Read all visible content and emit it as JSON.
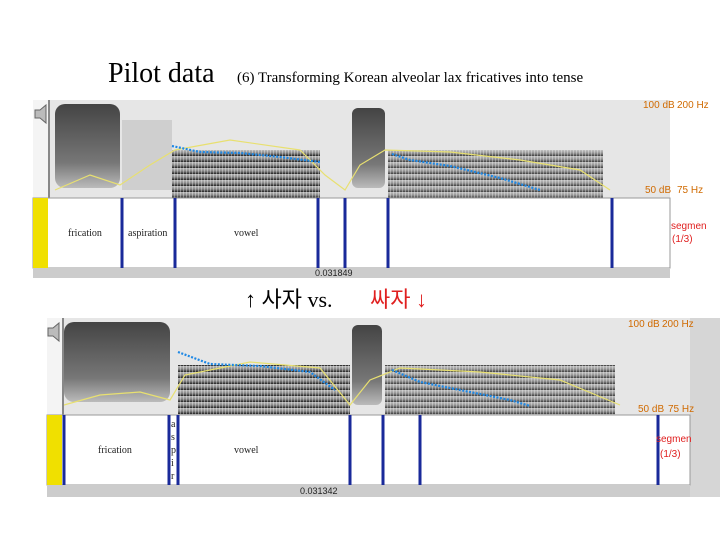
{
  "header": {
    "title": "Pilot data",
    "subtitle": "(6) Transforming Korean alveolar lax fricatives into tense"
  },
  "caption": {
    "left": "↑ 사자 vs.",
    "right": "싸자 ↓"
  },
  "panels": [
    {
      "top_db": "100 dB",
      "top_hz": "200 Hz",
      "bottom_db": "50 dB",
      "bottom_hz": "75 Hz",
      "intervals": [
        "frication",
        "aspiration",
        "vowel"
      ],
      "time": "0.031849",
      "tier_name": "segmen",
      "tier_index": "(1/3)"
    },
    {
      "top_db": "100 dB",
      "top_hz": "200 Hz",
      "bottom_db": "50 dB",
      "bottom_hz": "75 Hz",
      "intervals": [
        "frication",
        "vowel"
      ],
      "aspir_letters": [
        "a",
        "s",
        "p",
        "i",
        "r"
      ],
      "time": "0.031342",
      "tier_name": "segmen",
      "tier_index": "(1/3)"
    }
  ]
}
